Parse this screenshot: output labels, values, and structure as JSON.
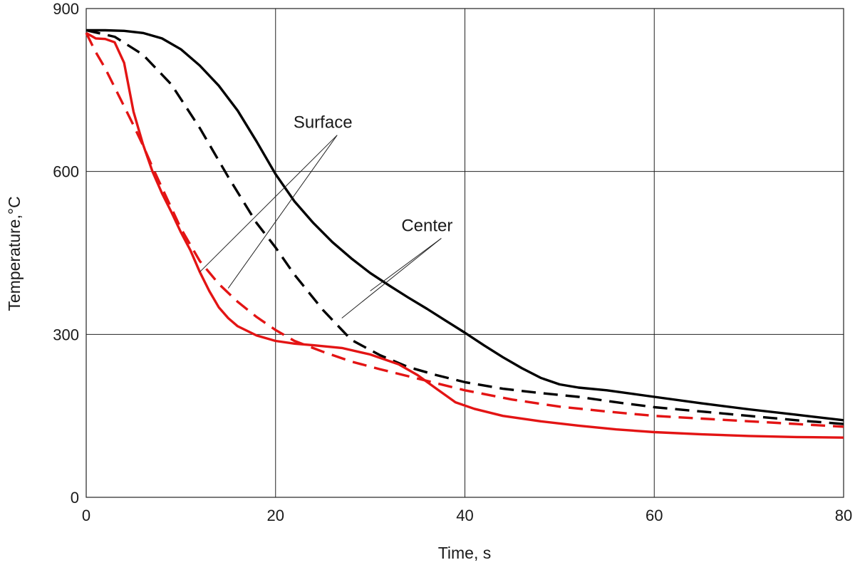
{
  "chart_data": {
    "type": "line",
    "xlabel": "Time,  s",
    "ylabel": "Temperature,",
    "ylabel_unit": "°C",
    "xlim": [
      0,
      80
    ],
    "ylim": [
      0,
      900
    ],
    "xticks": [
      0,
      20,
      40,
      60,
      80
    ],
    "yticks": [
      0,
      300,
      600,
      900
    ],
    "grid": true,
    "annotations": [
      {
        "text": "Surface",
        "at": [
          25,
          680
        ],
        "targets": [
          [
            12,
            415
          ],
          [
            15,
            385
          ]
        ]
      },
      {
        "text": "Center",
        "at": [
          36,
          490
        ],
        "targets": [
          [
            27,
            330
          ],
          [
            30,
            380
          ]
        ]
      }
    ],
    "series": [
      {
        "color": "#000000",
        "dashed": false,
        "x": [
          0,
          2,
          4,
          6,
          8,
          10,
          12,
          14,
          16,
          18,
          20,
          22,
          24,
          26,
          28,
          30,
          32,
          34,
          36,
          38,
          40,
          42,
          44,
          46,
          48,
          50,
          52,
          55,
          60,
          65,
          70,
          75,
          80
        ],
        "y": [
          860,
          860,
          859,
          855,
          845,
          825,
          795,
          758,
          712,
          655,
          595,
          545,
          505,
          470,
          440,
          413,
          390,
          368,
          347,
          325,
          303,
          280,
          258,
          238,
          220,
          208,
          202,
          197,
          185,
          173,
          162,
          152,
          142
        ]
      },
      {
        "color": "#000000",
        "dashed": true,
        "x": [
          0,
          3,
          6,
          9,
          12,
          15,
          18,
          20,
          22,
          25,
          28,
          31,
          34,
          37,
          40,
          44,
          48,
          52,
          56,
          60,
          65,
          70,
          75,
          80
        ],
        "y": [
          860,
          848,
          815,
          760,
          680,
          590,
          505,
          460,
          410,
          345,
          290,
          262,
          240,
          225,
          212,
          200,
          192,
          185,
          175,
          166,
          158,
          150,
          142,
          135
        ]
      },
      {
        "color": "#e31414",
        "dashed": false,
        "x": [
          0,
          1,
          2,
          3,
          4,
          5,
          6,
          7,
          8,
          9,
          10,
          11,
          12,
          13,
          14,
          15,
          16,
          18,
          20,
          22,
          24,
          27,
          30,
          33,
          35,
          37,
          39,
          41,
          44,
          48,
          52,
          56,
          60,
          65,
          70,
          75,
          80
        ],
        "y": [
          855,
          845,
          844,
          838,
          800,
          710,
          650,
          600,
          560,
          525,
          488,
          455,
          415,
          380,
          350,
          330,
          315,
          298,
          288,
          283,
          280,
          275,
          263,
          245,
          225,
          200,
          175,
          163,
          150,
          140,
          132,
          125,
          120,
          116,
          113,
          111,
          110
        ]
      },
      {
        "color": "#e31414",
        "dashed": true,
        "x": [
          0,
          1,
          2,
          3,
          4,
          5,
          6,
          7,
          8,
          10,
          12,
          14,
          16,
          18,
          20,
          22,
          25,
          28,
          31,
          34,
          37,
          40,
          45,
          50,
          55,
          60,
          65,
          70,
          75,
          80
        ],
        "y": [
          855,
          820,
          790,
          755,
          720,
          685,
          648,
          608,
          570,
          495,
          435,
          393,
          360,
          332,
          308,
          288,
          268,
          250,
          236,
          223,
          210,
          197,
          180,
          167,
          158,
          150,
          145,
          140,
          135,
          130
        ]
      }
    ]
  }
}
